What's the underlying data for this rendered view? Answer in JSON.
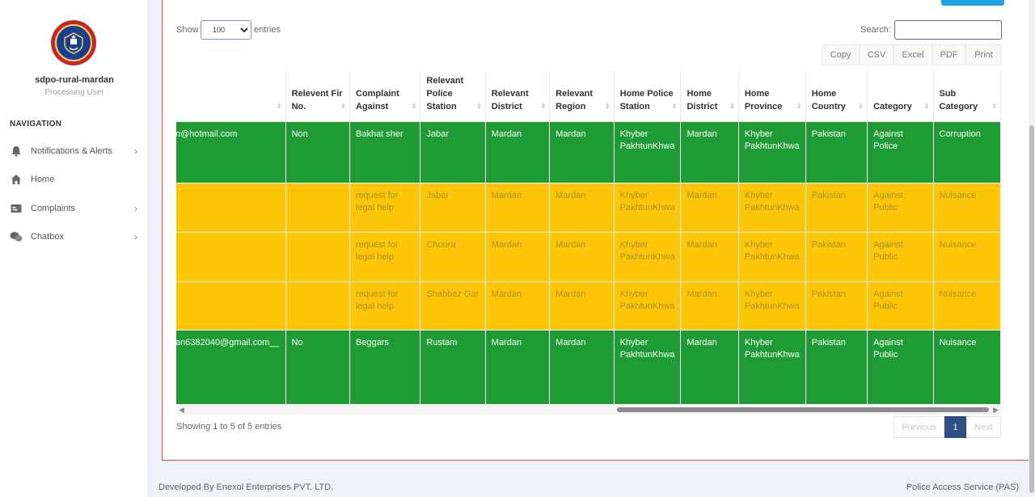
{
  "sidebar": {
    "user_name": "sdpo-rural-mardan",
    "user_role": "Processing User",
    "nav_title": "NAVIGATION",
    "items": [
      {
        "label": "Notifications & Alerts",
        "icon": "bell-icon",
        "has_chevron": true
      },
      {
        "label": "Home",
        "icon": "home-icon",
        "has_chevron": false
      },
      {
        "label": "Complaints",
        "icon": "complaints-icon",
        "has_chevron": true
      },
      {
        "label": "Chatbox",
        "icon": "chat-icon",
        "has_chevron": true
      }
    ]
  },
  "controls": {
    "show_label": "Show",
    "entries_label": "entries",
    "page_length": "100",
    "search_label": "Search:",
    "export_buttons": [
      "Copy",
      "CSV",
      "Excel",
      "PDF",
      "Print"
    ]
  },
  "table": {
    "columns": [
      "",
      "Relevent Fir No.",
      "Complaint Against",
      "Relevant Police Station",
      "Relevant District",
      "Relevant Region",
      "Home Police Station",
      "Home District",
      "Home Province",
      "Home Country",
      "Category",
      "Sub Category"
    ],
    "rows": [
      {
        "status": "green",
        "cells": [
          "n@hotmail.com",
          "Non",
          "Bakhat sher",
          "Jabar",
          "Mardan",
          "Mardan",
          "Khyber PakhtunKhwa",
          "Mardan",
          "Khyber PakhtunKhwa",
          "Pakistan",
          "Against Police",
          "Corruption"
        ]
      },
      {
        "status": "yellow",
        "cells": [
          "",
          "",
          "request for legal help",
          "Jabar",
          "Mardan",
          "Mardan",
          "Khyber PakhtunKhwa",
          "Mardan",
          "Khyber PakhtunKhwa",
          "Pakistan",
          "Against Public",
          "Nuisance"
        ]
      },
      {
        "status": "yellow",
        "cells": [
          "",
          "",
          "request for legal help",
          "Choora",
          "Mardan",
          "Mardan",
          "Khyber PakhtunKhwa",
          "Mardan",
          "Khyber PakhtunKhwa",
          "Pakistan",
          "Against Public",
          "Nuisance"
        ]
      },
      {
        "status": "yellow",
        "cells": [
          "",
          "",
          "request for legal help",
          "Shahbaz Gar",
          "Mardan",
          "Mardan",
          "Khyber PakhtunKhwa",
          "Mardan",
          "Khyber PakhtunKhwa",
          "Pakistan",
          "Against Public",
          "Nuisance"
        ]
      },
      {
        "status": "green",
        "cells": [
          "an6382040@gmail.com__",
          "No",
          "Beggars",
          "Rustam",
          "Mardan",
          "Mardan",
          "Khyber PakhtunKhwa",
          "Mardan",
          "Khyber PakhtunKhwa",
          "Pakistan",
          "Against Public",
          "Nuisance"
        ]
      }
    ]
  },
  "info_text": "Showing 1 to 5 of 5 entries",
  "pagination": {
    "previous": "Previous",
    "current": "1",
    "next": "Next"
  },
  "footer": {
    "left": "Developed By Enexol Enterprises PVT. LTD.",
    "right": "Police Access Service (PAS)"
  },
  "colors": {
    "row_green": "#1e9b34",
    "row_yellow": "#fdc609",
    "accent": "#2d4f82",
    "panel_border": "#e24a4a"
  }
}
